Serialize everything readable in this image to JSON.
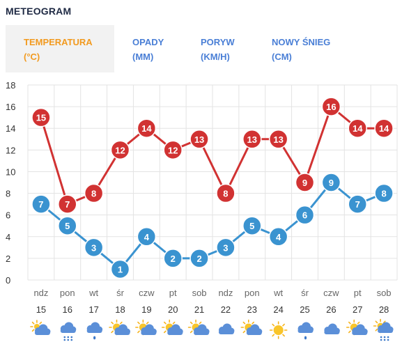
{
  "header": {
    "title": "METEOGRAM"
  },
  "tabs": [
    {
      "line1": "TEMPERATURA",
      "line2": "(°C)",
      "active": true
    },
    {
      "line1": "OPADY",
      "line2": "(MM)",
      "active": false
    },
    {
      "line1": "PORYW",
      "line2": "(KM/H)",
      "active": false
    },
    {
      "line1": "NOWY ŚNIEG",
      "line2": "(CM)",
      "active": false
    }
  ],
  "colors": {
    "active_tab": "#f29a1f",
    "tab_link": "#4a7fd6",
    "series_max": "#d13232",
    "series_min": "#3a93d0",
    "grid": "#e3e3e3"
  },
  "days": [
    {
      "name": "ndz",
      "date": "15",
      "icon": "partly-cloudy-icon"
    },
    {
      "name": "pon",
      "date": "16",
      "icon": "cloud-snow-icon"
    },
    {
      "name": "wt",
      "date": "17",
      "icon": "cloud-rain-icon"
    },
    {
      "name": "śr",
      "date": "18",
      "icon": "sun-cloud-icon"
    },
    {
      "name": "czw",
      "date": "19",
      "icon": "sun-cloud-icon"
    },
    {
      "name": "pt",
      "date": "20",
      "icon": "sun-cloud-icon"
    },
    {
      "name": "sob",
      "date": "21",
      "icon": "sun-cloud-icon"
    },
    {
      "name": "ndz",
      "date": "22",
      "icon": "cloud-icon"
    },
    {
      "name": "pon",
      "date": "23",
      "icon": "sun-cloud-icon"
    },
    {
      "name": "wt",
      "date": "24",
      "icon": "sun-icon"
    },
    {
      "name": "śr",
      "date": "25",
      "icon": "cloud-rain-icon"
    },
    {
      "name": "czw",
      "date": "26",
      "icon": "cloud-icon"
    },
    {
      "name": "pt",
      "date": "27",
      "icon": "sun-cloud-icon"
    },
    {
      "name": "sob",
      "date": "28",
      "icon": "sun-cloud-snow-icon"
    }
  ],
  "chart_data": {
    "type": "line",
    "x": [
      "ndz 15",
      "pon 16",
      "wt 17",
      "śr 18",
      "czw 19",
      "pt 20",
      "sob 21",
      "ndz 22",
      "pon 23",
      "wt 24",
      "śr 25",
      "czw 26",
      "pt 27",
      "sob 28"
    ],
    "series": [
      {
        "values": [
          15,
          7,
          8,
          12,
          14,
          12,
          13,
          8,
          13,
          13,
          9,
          16,
          14,
          14
        ],
        "color": "#d13232"
      },
      {
        "values": [
          7,
          5,
          3,
          1,
          4,
          2,
          2,
          3,
          5,
          4,
          6,
          9,
          7,
          8
        ],
        "color": "#3a93d0"
      }
    ],
    "yticks": [
      0,
      2,
      4,
      6,
      8,
      10,
      12,
      14,
      16,
      18
    ],
    "ylim": [
      0,
      18
    ],
    "grid": true
  }
}
